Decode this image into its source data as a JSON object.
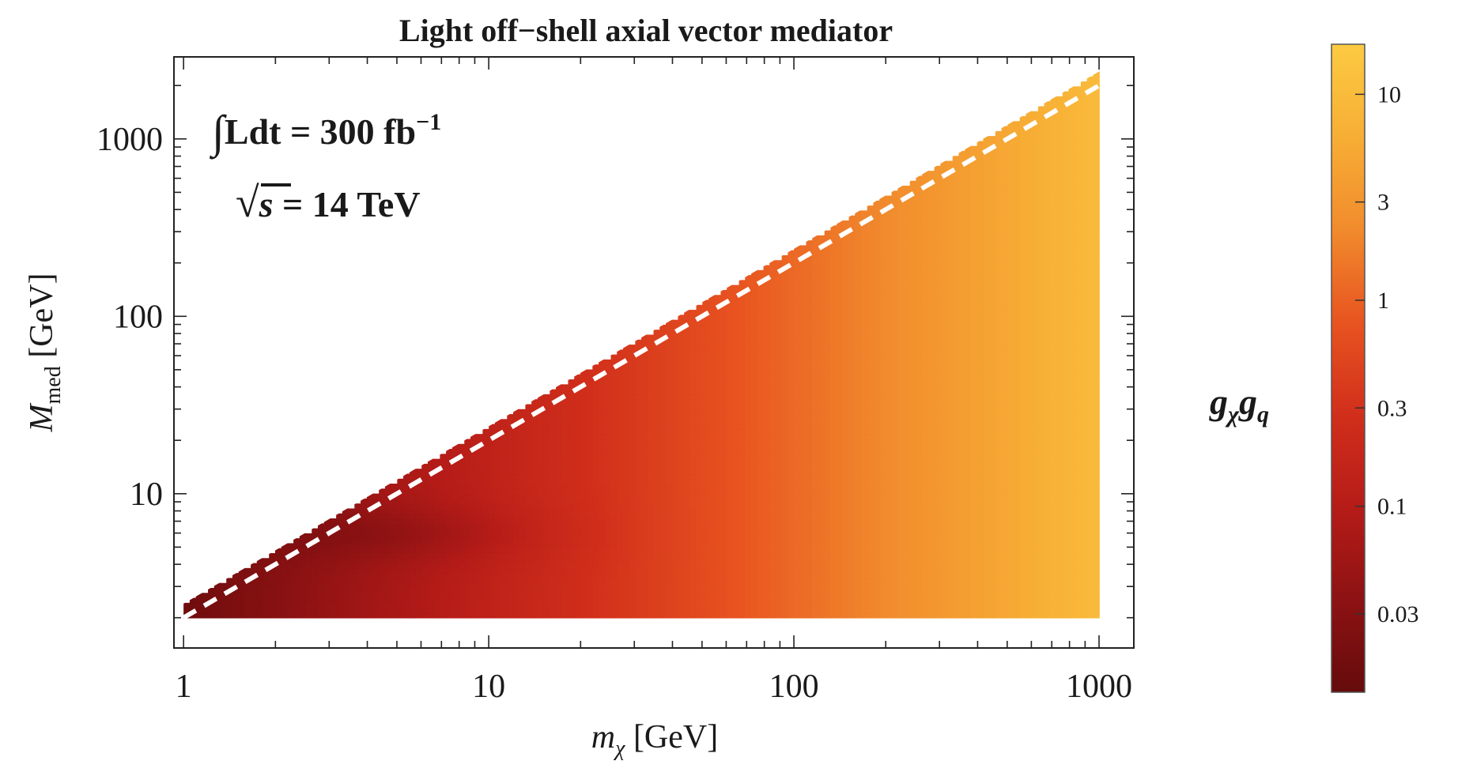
{
  "chart_data": {
    "type": "heatmap",
    "title": "Light off−shell axial vector mediator",
    "xlabel": {
      "symbol": "m",
      "sub": "χ",
      "unit": "[GeV]"
    },
    "ylabel": {
      "symbol": "M",
      "sub": "med",
      "unit": "[GeV]"
    },
    "xscale": "log",
    "yscale": "log",
    "xlim": [
      0.93,
      1300
    ],
    "ylim": [
      1.35,
      2900
    ],
    "x_ticks": [
      1,
      10,
      100,
      1000
    ],
    "x_tick_labels": [
      "1",
      "10",
      "100",
      "1000"
    ],
    "y_ticks": [
      10,
      100,
      1000
    ],
    "y_tick_labels": [
      "10",
      "100",
      "1000"
    ],
    "region": {
      "description": "filled for 2 GeV <= M_med <= 2.4 x m_chi, m_chi from 1 to 1000 GeV",
      "m_chi_range": [
        1,
        1000
      ],
      "M_med_min": 2,
      "M_med_max_factor": 2.4
    },
    "boundary_line": {
      "style": "white-dashed",
      "M_med_over_m_chi": 2.0,
      "m_chi_range": [
        1,
        1000
      ]
    },
    "annotations": [
      {
        "lines": [
          {
            "prefix": "∫",
            "text": "Ldt = 300 fb",
            "sup": "−1"
          },
          {
            "prefix": "√",
            "text": "s",
            "suffix": " = 14 TeV"
          }
        ]
      }
    ],
    "colorbar": {
      "label": {
        "base1": "g",
        "sub1": "χ",
        "base2": "g",
        "sub2": "q"
      },
      "scale": "log",
      "range": [
        0.0125,
        17.5
      ],
      "ticks": [
        0.03,
        0.1,
        0.3,
        1,
        3,
        10
      ],
      "tick_labels": [
        "0.03",
        "0.1",
        "0.3",
        "1",
        "3",
        "10"
      ],
      "colormap": [
        "#650b0c",
        "#8d1213",
        "#b61c18",
        "#d12f1b",
        "#e85420",
        "#f18b2d",
        "#f7ae35",
        "#fcca42"
      ]
    },
    "color_model": {
      "coupling_formula": "g ~ 0.016 * m_chi^0.93 with low-mass dip near M_med ~ 6 GeV"
    }
  }
}
